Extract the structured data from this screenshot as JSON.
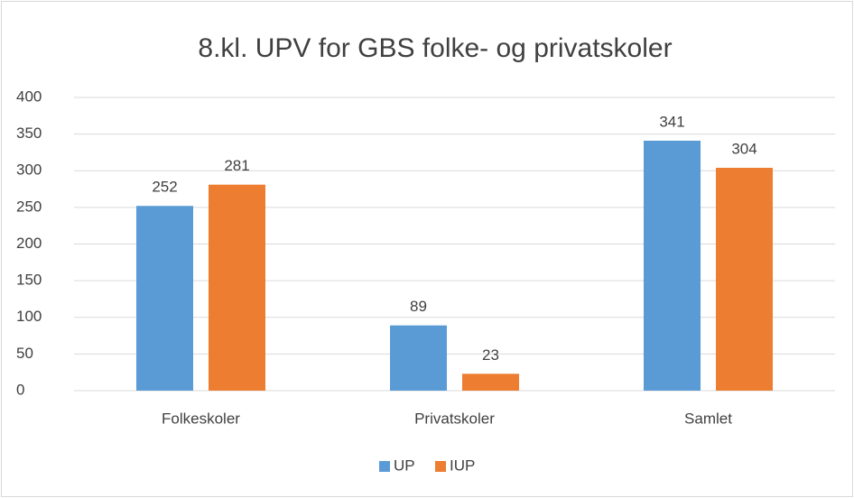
{
  "chart_data": {
    "type": "bar",
    "title": "8.kl. UPV for GBS folke- og privatskoler",
    "categories": [
      "Folkeskoler",
      "Privatskoler",
      "Samlet"
    ],
    "series": [
      {
        "name": "UP",
        "color": "#5b9bd5",
        "values": [
          252,
          89,
          341
        ]
      },
      {
        "name": "IUP",
        "color": "#ed7d31",
        "values": [
          281,
          23,
          304
        ]
      }
    ],
    "ylim": [
      0,
      400
    ],
    "yticks": [
      0,
      50,
      100,
      150,
      200,
      250,
      300,
      350,
      400
    ],
    "grid": true,
    "legend": "bottom",
    "data_labels": true
  }
}
